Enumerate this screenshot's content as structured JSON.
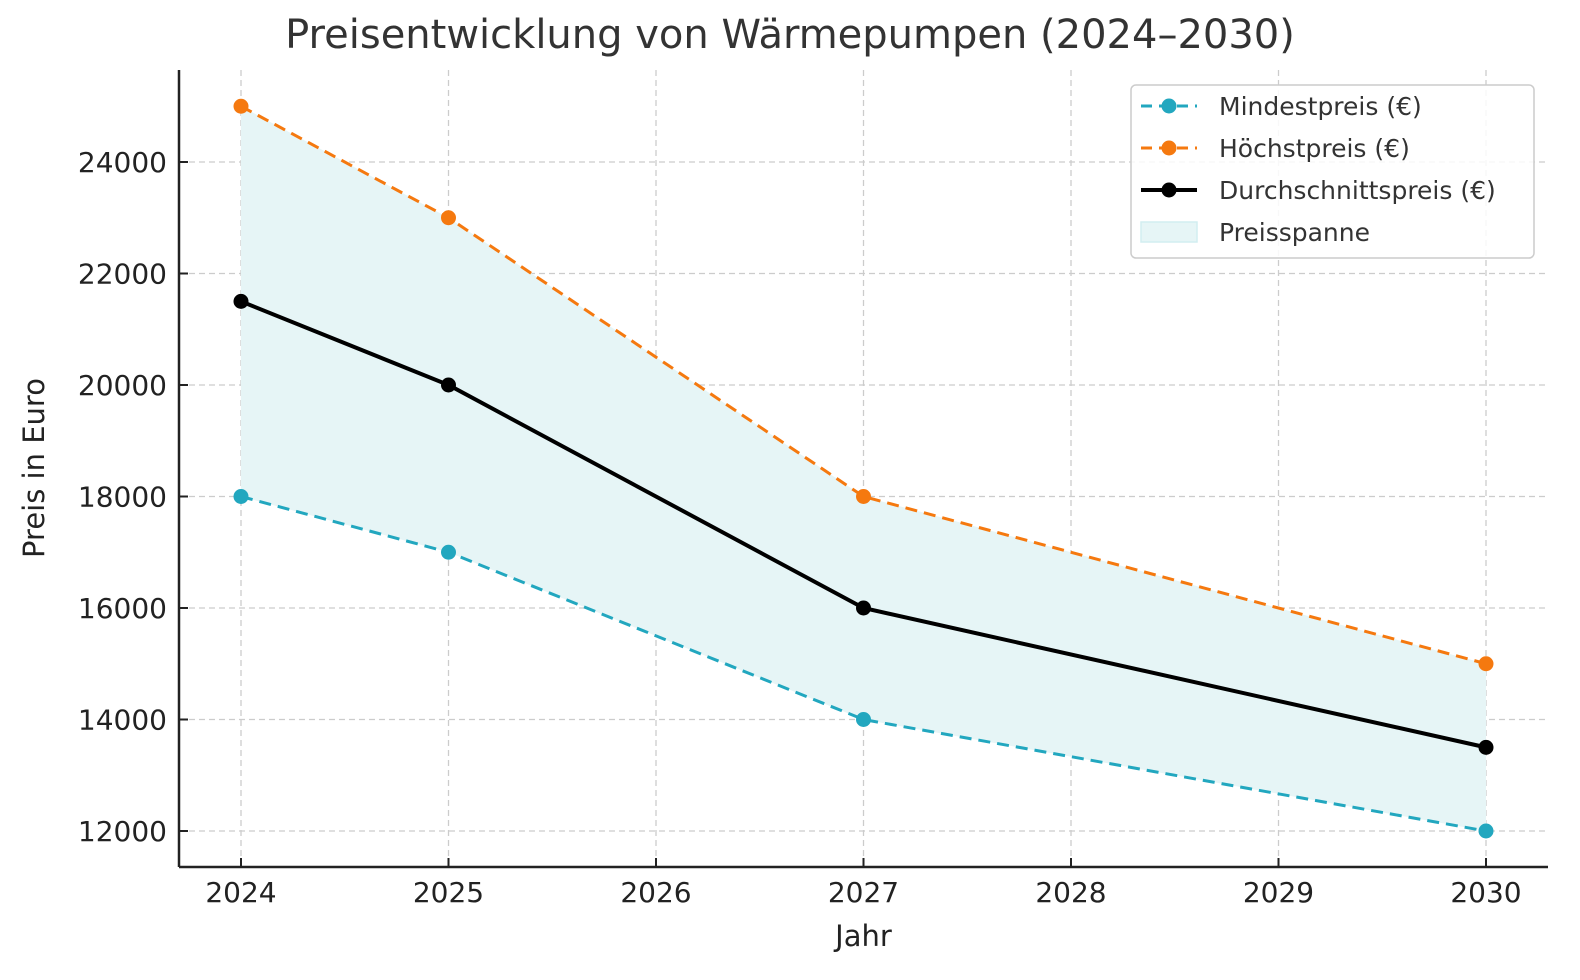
{
  "chart_data": {
    "type": "line",
    "title": "Preisentwicklung von Wärmepumpen (2024–2030)",
    "xlabel": "Jahr",
    "ylabel": "Preis in Euro",
    "x_ticks": [
      "2024",
      "2025",
      "2026",
      "2027",
      "2028",
      "2029",
      "2030"
    ],
    "y_ticks": [
      "12000",
      "14000",
      "16000",
      "18000",
      "20000",
      "22000",
      "24000"
    ],
    "xlim": [
      2023.7,
      2030.25
    ],
    "ylim": [
      11350,
      25650
    ],
    "grid": true,
    "legend_position": "upper right",
    "x": [
      2024,
      2025,
      2027,
      2030
    ],
    "series": [
      {
        "name": "Mindestpreis (€)",
        "values": [
          18000,
          17000,
          14000,
          12000
        ],
        "color": "#22a7bf",
        "style": "dashed",
        "marker": "o"
      },
      {
        "name": "Höchstpreis (€)",
        "values": [
          25000,
          23000,
          18000,
          15000
        ],
        "color": "#f5790f",
        "style": "dashed",
        "marker": "o"
      },
      {
        "name": "Durchschnittspreis (€)",
        "values": [
          21500,
          20000,
          16000,
          13500
        ],
        "color": "#000000",
        "style": "solid",
        "marker": "o"
      }
    ],
    "fill": {
      "name": "Preisspanne",
      "between": [
        "Mindestpreis (€)",
        "Höchstpreis (€)"
      ],
      "color": "#e6f5f6"
    }
  }
}
